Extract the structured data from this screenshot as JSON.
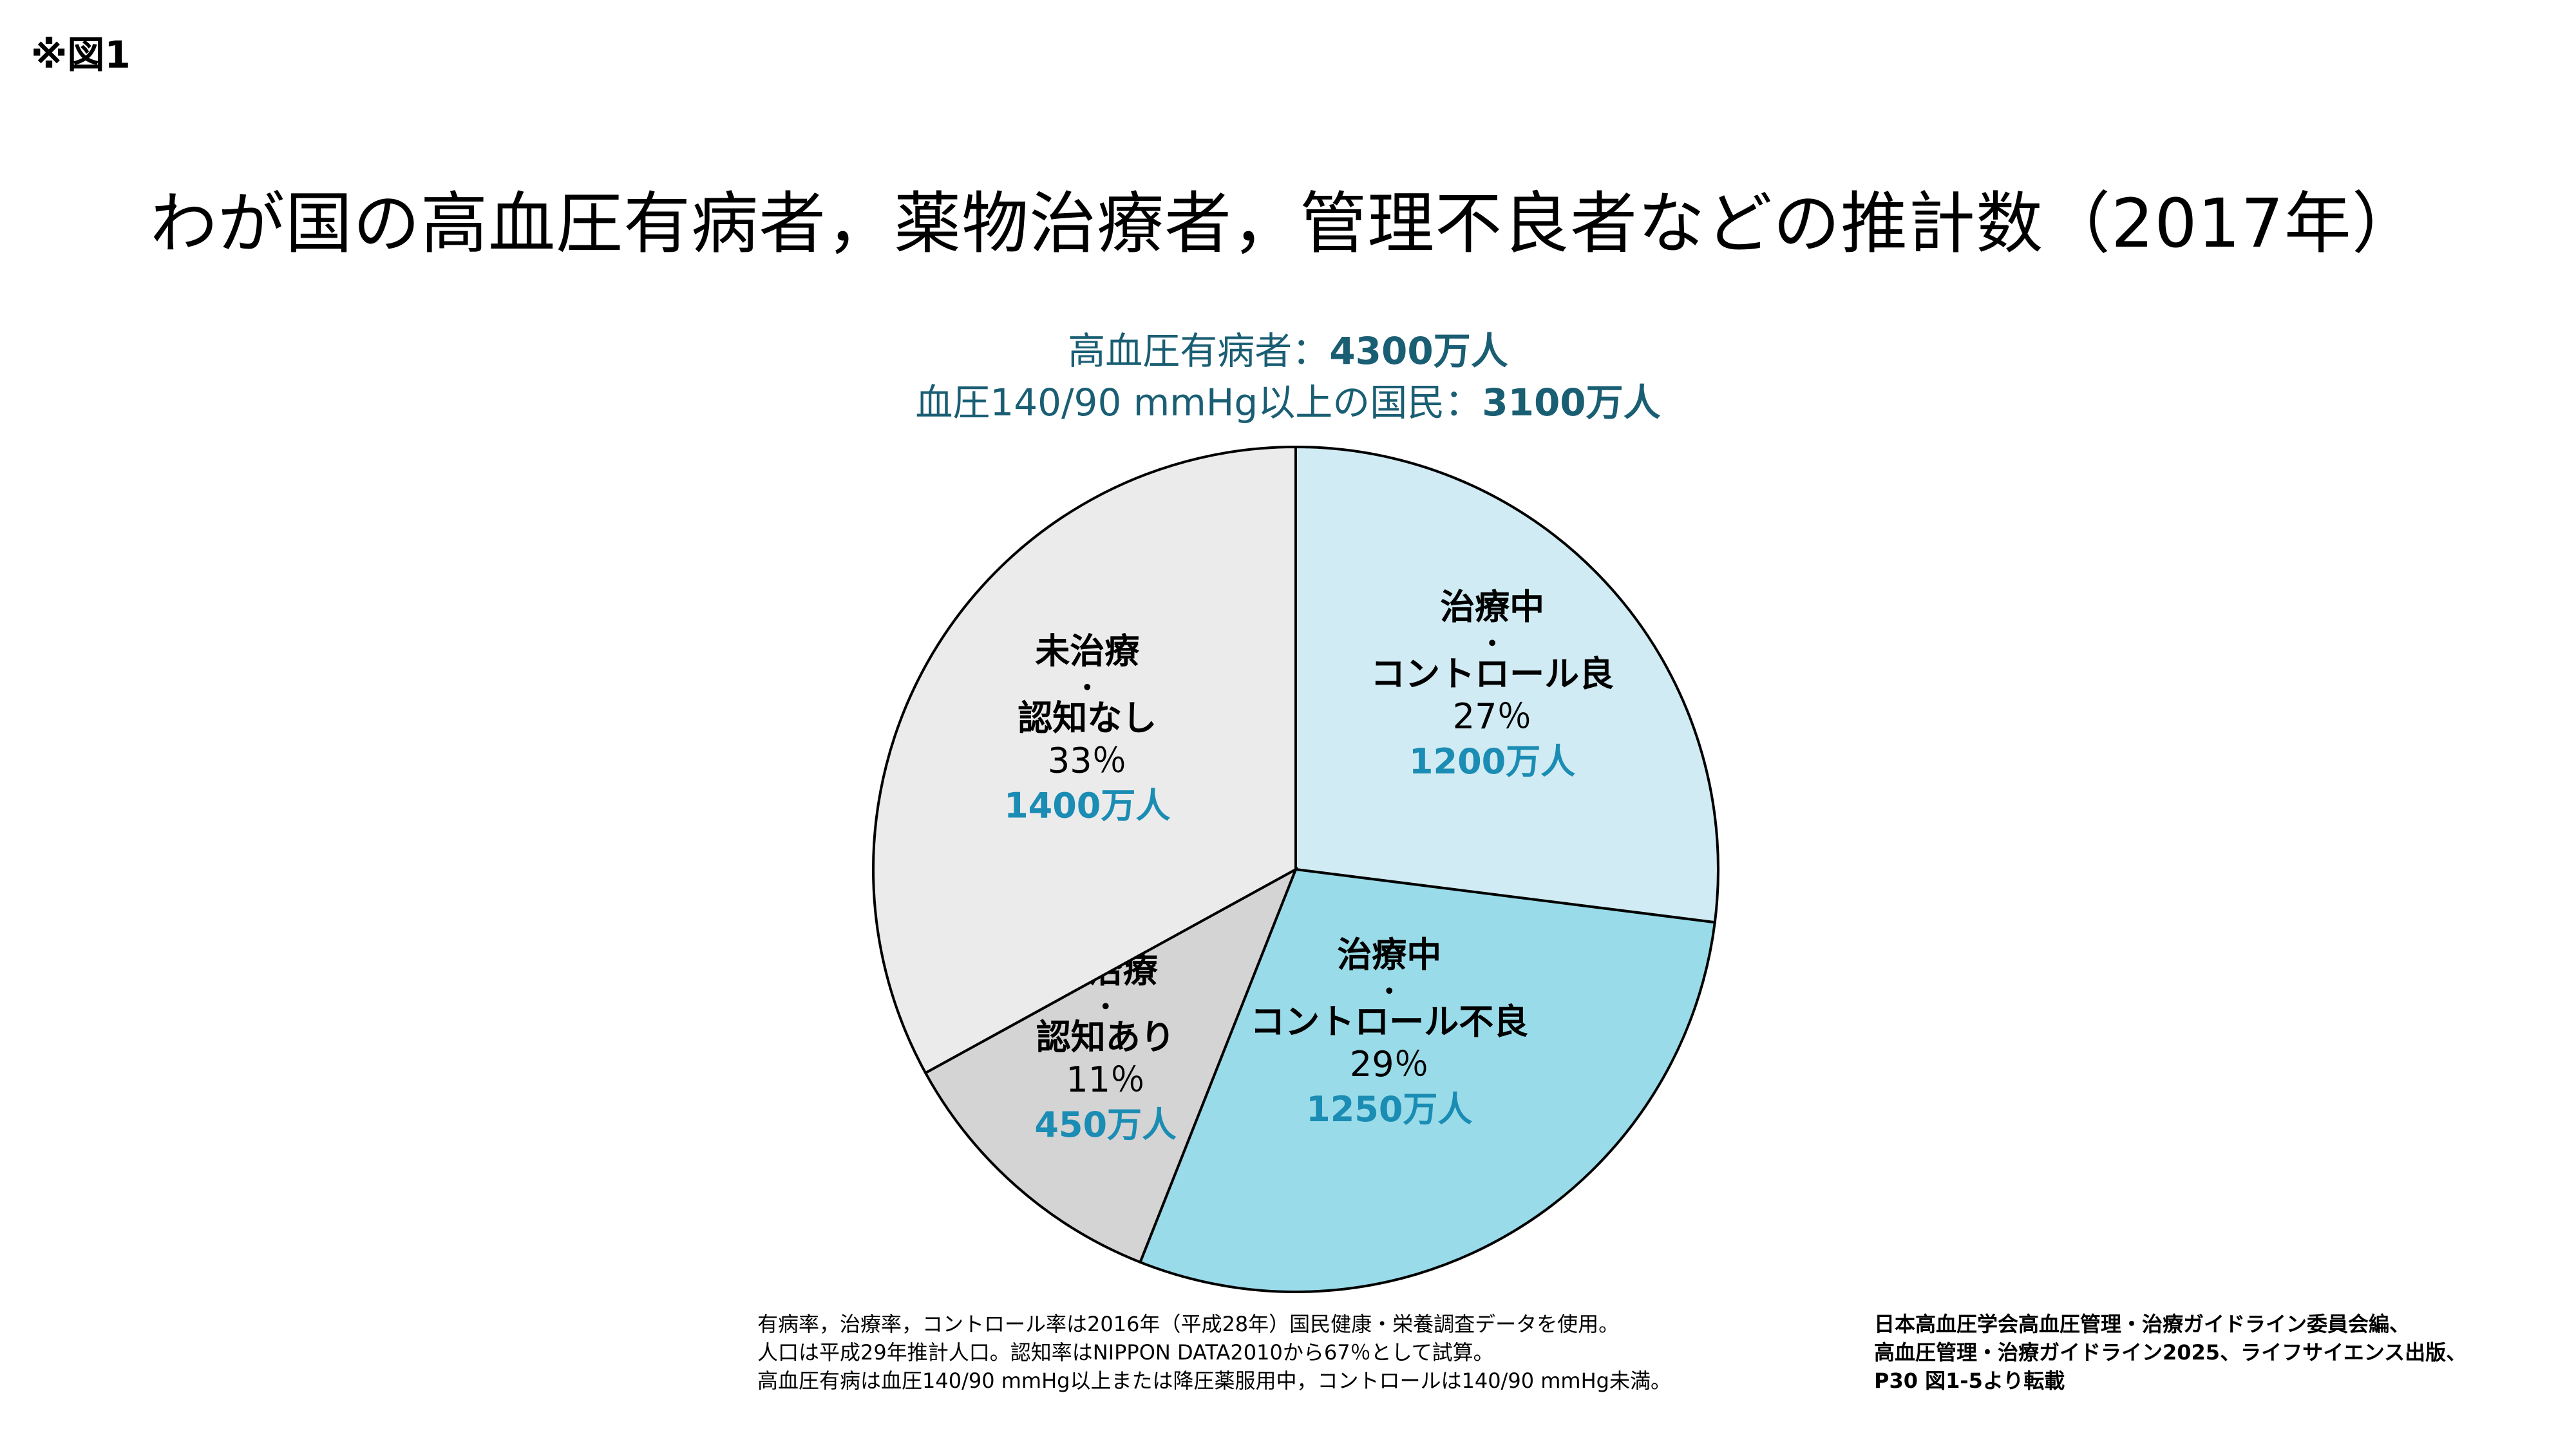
{
  "figure_label": "※図1",
  "title": "わが国の高血圧有病者，薬物治療者，管理不良者などの推計数（2017年）",
  "summary": {
    "line1_label": "高血圧有病者：",
    "line1_value": "4300万人",
    "line2_label": "血圧140/90 mmHg以上の国民：",
    "line2_value": "3100万人"
  },
  "colors": {
    "summary_text": "#1a5e73",
    "count_text": "#1b8cb3",
    "slice_border": "#000000"
  },
  "chart_data": {
    "type": "pie",
    "title": "",
    "slices": [
      {
        "label_line1": "治療中",
        "label_dot": "・",
        "label_line2": "コントロール良",
        "percent_text": "27％",
        "count_text": "1200万人",
        "value": 27,
        "color": "#d0ebf3"
      },
      {
        "label_line1": "治療中",
        "label_dot": "・",
        "label_line2": "コントロール不良",
        "percent_text": "29％",
        "count_text": "1250万人",
        "value": 29,
        "color": "#99dbe9"
      },
      {
        "label_line1": "未治療",
        "label_dot": "・",
        "label_line2": "認知あり",
        "percent_text": "11％",
        "count_text": "450万人",
        "value": 11,
        "color": "#d4d4d4"
      },
      {
        "label_line1": "未治療",
        "label_dot": "・",
        "label_line2": "認知なし",
        "percent_text": "33％",
        "count_text": "1400万人",
        "value": 33,
        "color": "#ebebeb"
      }
    ]
  },
  "footnote": [
    "有病率，治療率，コントロール率は2016年（平成28年）国民健康・栄養調査データを使用。",
    "人口は平成29年推計人口。認知率はNIPPON DATA2010から67％として試算。",
    "高血圧有病は血圧140/90 mmHg以上または降圧薬服用中，コントロールは140/90 mmHg未満。"
  ],
  "source": [
    "日本高血圧学会高血圧管理・治療ガイドライン委員会編、",
    "高血圧管理・治療ガイドライン2025、ライフサイエンス出版、",
    "P30 図1-5より転載"
  ]
}
